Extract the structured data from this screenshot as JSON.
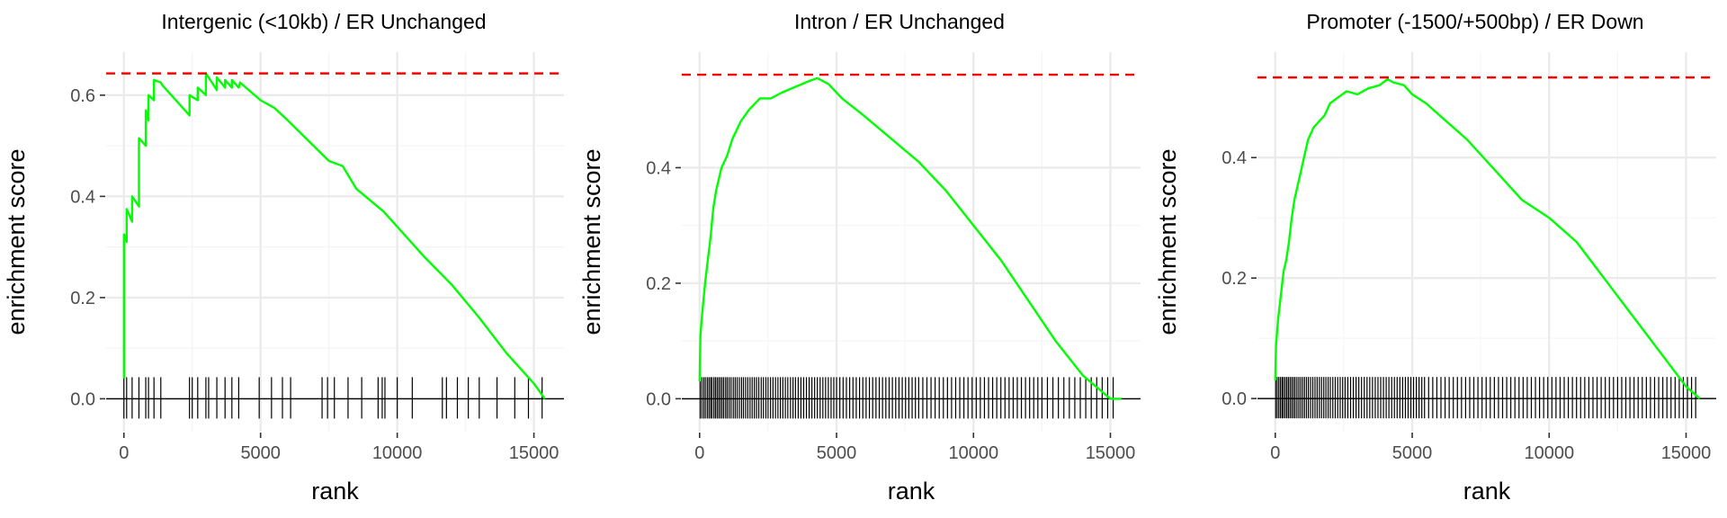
{
  "chart_data": [
    {
      "type": "line",
      "title": "Intergenic (<10kb) / ER Unchanged",
      "xlabel": "rank",
      "ylabel": "enrichment score",
      "xlim": [
        -650,
        16100
      ],
      "ylim": [
        -0.065,
        0.685
      ],
      "x_ticks": [
        0,
        5000,
        10000,
        15000
      ],
      "x_tick_labels": [
        "0",
        "5000",
        "10000",
        "15000"
      ],
      "y_ticks": [
        0.0,
        0.2,
        0.4,
        0.6
      ],
      "y_tick_labels": [
        "0.0",
        "0.2",
        "0.4",
        "0.6"
      ],
      "max_es": 0.643,
      "line_color": "#00ff00",
      "max_line_color": "#ff0000",
      "grid": true,
      "series": [
        {
          "x": [
            0,
            0,
            100,
            100,
            300,
            300,
            550,
            550,
            800,
            800,
            900,
            900,
            1100,
            1100,
            1350,
            1400,
            2400,
            2400,
            2700,
            2700,
            3000,
            3000,
            3400,
            3400,
            3700,
            3700,
            3950,
            3950,
            4200,
            4250,
            5000,
            5500,
            6000,
            7500,
            8000,
            8500,
            9500,
            10000,
            11000,
            12000,
            13000,
            14000,
            15000,
            15400
          ],
          "y": [
            0.04,
            0.325,
            0.31,
            0.375,
            0.35,
            0.4,
            0.38,
            0.515,
            0.5,
            0.57,
            0.55,
            0.6,
            0.59,
            0.63,
            0.625,
            0.62,
            0.56,
            0.6,
            0.59,
            0.615,
            0.6,
            0.643,
            0.61,
            0.635,
            0.615,
            0.63,
            0.615,
            0.63,
            0.615,
            0.625,
            0.59,
            0.575,
            0.55,
            0.47,
            0.46,
            0.415,
            0.37,
            0.34,
            0.28,
            0.225,
            0.16,
            0.09,
            0.03,
            0.0
          ]
        }
      ],
      "hits": [
        0,
        100,
        300,
        550,
        800,
        900,
        1100,
        1350,
        2400,
        2500,
        2700,
        3000,
        3100,
        3400,
        3700,
        3950,
        4200,
        4950,
        5400,
        5800,
        6100,
        7250,
        7450,
        7700,
        8200,
        8700,
        9300,
        9450,
        9550,
        10000,
        10550,
        11650,
        11800,
        12200,
        12600,
        13000,
        13650,
        14300,
        14800,
        15300
      ]
    },
    {
      "type": "line",
      "title": "Intron / ER Unchanged",
      "xlabel": "rank",
      "ylabel": "enrichment score",
      "xlim": [
        -650,
        16100
      ],
      "ylim": [
        -0.057,
        0.6
      ],
      "x_ticks": [
        0,
        5000,
        10000,
        15000
      ],
      "x_tick_labels": [
        "0",
        "5000",
        "10000",
        "15000"
      ],
      "y_ticks": [
        0.0,
        0.2,
        0.4
      ],
      "y_tick_labels": [
        "0.0",
        "0.2",
        "0.4"
      ],
      "max_es": 0.561,
      "line_color": "#00ff00",
      "max_line_color": "#ff0000",
      "grid": true,
      "series": [
        {
          "x": [
            0,
            30,
            100,
            200,
            300,
            400,
            500,
            600,
            800,
            1000,
            1200,
            1500,
            1800,
            2200,
            2600,
            3000,
            3500,
            4000,
            4300,
            4700,
            5200,
            6000,
            7000,
            8000,
            9000,
            10000,
            11000,
            12000,
            13000,
            14000,
            15000,
            15400
          ],
          "y": [
            0.03,
            0.11,
            0.15,
            0.2,
            0.24,
            0.28,
            0.33,
            0.36,
            0.4,
            0.42,
            0.45,
            0.48,
            0.5,
            0.52,
            0.52,
            0.53,
            0.54,
            0.55,
            0.555,
            0.545,
            0.52,
            0.49,
            0.45,
            0.41,
            0.36,
            0.3,
            0.24,
            0.17,
            0.1,
            0.04,
            0.0,
            0.0
          ]
        }
      ],
      "hits": [
        20,
        80,
        150,
        210,
        280,
        340,
        400,
        450,
        520,
        580,
        640,
        700,
        760,
        820,
        880,
        950,
        1010,
        1080,
        1150,
        1230,
        1300,
        1370,
        1450,
        1530,
        1600,
        1680,
        1760,
        1840,
        1920,
        2000,
        2080,
        2160,
        2250,
        2330,
        2420,
        2500,
        2590,
        2680,
        2770,
        2860,
        2950,
        3040,
        3130,
        3220,
        3320,
        3410,
        3500,
        3600,
        3700,
        3800,
        3900,
        4000,
        4100,
        4200,
        4300,
        4400,
        4500,
        4600,
        4700,
        4800,
        4900,
        5000,
        5120,
        5240,
        5360,
        5480,
        5600,
        5720,
        5840,
        5960,
        6080,
        6200,
        6320,
        6440,
        6560,
        6680,
        6800,
        6920,
        7040,
        7160,
        7280,
        7400,
        7520,
        7640,
        7760,
        7880,
        8000,
        8150,
        8300,
        8450,
        8600,
        8750,
        8900,
        9050,
        9200,
        9350,
        9500,
        9650,
        9800,
        9950,
        10100,
        10250,
        10400,
        10550,
        10700,
        10850,
        11000,
        11150,
        11300,
        11450,
        11600,
        11750,
        11900,
        12050,
        12200,
        12350,
        12500,
        12700,
        12900,
        13100,
        13300,
        13500,
        13700,
        13900,
        14100,
        14300,
        14500,
        14700,
        14900,
        15100
      ]
    },
    {
      "type": "line",
      "title": "Promoter (-1500/+500bp) / ER Down",
      "xlabel": "rank",
      "ylabel": "enrichment score",
      "xlim": [
        -650,
        16100
      ],
      "ylim": [
        -0.055,
        0.575
      ],
      "x_ticks": [
        0,
        5000,
        10000,
        15000
      ],
      "x_tick_labels": [
        "0",
        "5000",
        "10000",
        "15000"
      ],
      "y_ticks": [
        0.0,
        0.2,
        0.4
      ],
      "y_tick_labels": [
        "0.0",
        "0.2",
        "0.4"
      ],
      "max_es": 0.533,
      "line_color": "#00ff00",
      "max_line_color": "#ff0000",
      "grid": true,
      "series": [
        {
          "x": [
            0,
            30,
            100,
            200,
            300,
            400,
            500,
            600,
            700,
            800,
            900,
            1000,
            1200,
            1400,
            1600,
            1800,
            2000,
            2300,
            2600,
            3000,
            3400,
            3800,
            4100,
            4300,
            4700,
            5000,
            5500,
            6000,
            7000,
            8000,
            9000,
            10000,
            11000,
            12000,
            13000,
            14000,
            15000,
            15500
          ],
          "y": [
            0.03,
            0.09,
            0.13,
            0.17,
            0.21,
            0.23,
            0.26,
            0.3,
            0.33,
            0.35,
            0.37,
            0.39,
            0.43,
            0.45,
            0.46,
            0.47,
            0.49,
            0.5,
            0.51,
            0.505,
            0.515,
            0.52,
            0.53,
            0.525,
            0.52,
            0.505,
            0.49,
            0.47,
            0.43,
            0.38,
            0.33,
            0.3,
            0.26,
            0.2,
            0.14,
            0.08,
            0.02,
            0.0
          ]
        }
      ],
      "hits": [
        15,
        70,
        130,
        190,
        250,
        300,
        360,
        420,
        480,
        540,
        600,
        660,
        720,
        790,
        860,
        930,
        1000,
        1070,
        1140,
        1210,
        1290,
        1370,
        1450,
        1530,
        1610,
        1690,
        1770,
        1850,
        1930,
        2010,
        2100,
        2190,
        2280,
        2370,
        2460,
        2550,
        2650,
        2750,
        2850,
        2950,
        3050,
        3150,
        3250,
        3350,
        3450,
        3550,
        3650,
        3750,
        3850,
        3950,
        4050,
        4150,
        4250,
        4350,
        4450,
        4550,
        4650,
        4750,
        4850,
        4950,
        5050,
        5150,
        5250,
        5350,
        5450,
        5600,
        5750,
        5900,
        6050,
        6200,
        6350,
        6500,
        6650,
        6800,
        6950,
        7100,
        7250,
        7400,
        7550,
        7700,
        7850,
        8000,
        8150,
        8300,
        8450,
        8600,
        8750,
        8900,
        9050,
        9200,
        9350,
        9500,
        9650,
        9800,
        9950,
        10100,
        10250,
        10400,
        10550,
        10700,
        10850,
        11000,
        11150,
        11300,
        11450,
        11600,
        11750,
        11900,
        12050,
        12200,
        12350,
        12500,
        12650,
        12800,
        12950,
        13100,
        13250,
        13400,
        13550,
        13700,
        13850,
        14000,
        14150,
        14300,
        14450,
        14600,
        14750,
        14900,
        15050,
        15200,
        15350
      ]
    }
  ]
}
